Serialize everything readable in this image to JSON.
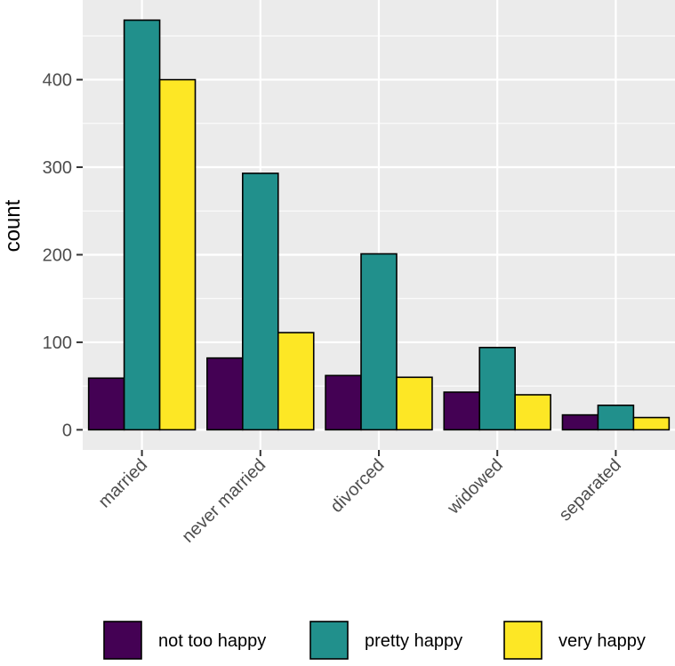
{
  "chart_data": {
    "type": "bar",
    "title": "",
    "xlabel": "",
    "ylabel": "count",
    "categories": [
      "married",
      "never married",
      "divorced",
      "widowed",
      "separated"
    ],
    "series": [
      {
        "name": "not too happy",
        "color": "#440154",
        "values": [
          59,
          82,
          62,
          43,
          17
        ]
      },
      {
        "name": "pretty happy",
        "color": "#21908C",
        "values": [
          468,
          293,
          201,
          94,
          28
        ]
      },
      {
        "name": "very happy",
        "color": "#FDE725",
        "values": [
          400,
          111,
          60,
          40,
          14
        ]
      }
    ],
    "yticks": [
      0,
      100,
      200,
      300,
      400
    ],
    "ylim": [
      -23,
      491
    ],
    "grid": true,
    "panel_background": "#EBEBEB",
    "legend_position": "bottom"
  }
}
